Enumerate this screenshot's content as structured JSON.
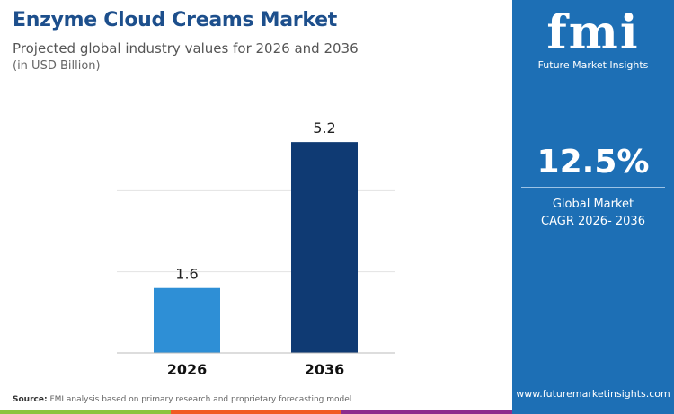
{
  "header": {
    "title": "Enzyme Cloud Creams Market",
    "subtitle": "Projected global industry values for 2026 and 2036",
    "unit": "(in USD Billion)"
  },
  "sidebar": {
    "logo_text": "fmi",
    "logo_caption": "Future Market Insights",
    "cagr_value": "12.5%",
    "cagr_label_1": "Global Market",
    "cagr_label_2": "CAGR 2026- 2036",
    "url": "www.futuremarketinsights.com"
  },
  "footer": {
    "source_label": "Source:",
    "source_text": "FMI analysis based on primary research and proprietary forecasting model"
  },
  "colors": {
    "brand": "#1d6fb5",
    "bar_2026": "#2e8fd6",
    "bar_2036": "#0f3a73",
    "strip": [
      "#8cc43f",
      "#f15a24",
      "#8e2b8d",
      "#1d6fb5"
    ]
  },
  "chart_data": {
    "type": "bar",
    "categories": [
      "2026",
      "2036"
    ],
    "values": [
      1.6,
      5.2
    ],
    "data_labels": [
      "1.6",
      "5.2"
    ],
    "ylim": [
      0,
      6
    ],
    "grid": true,
    "gridlines": [
      2,
      4
    ],
    "legend": "none"
  }
}
